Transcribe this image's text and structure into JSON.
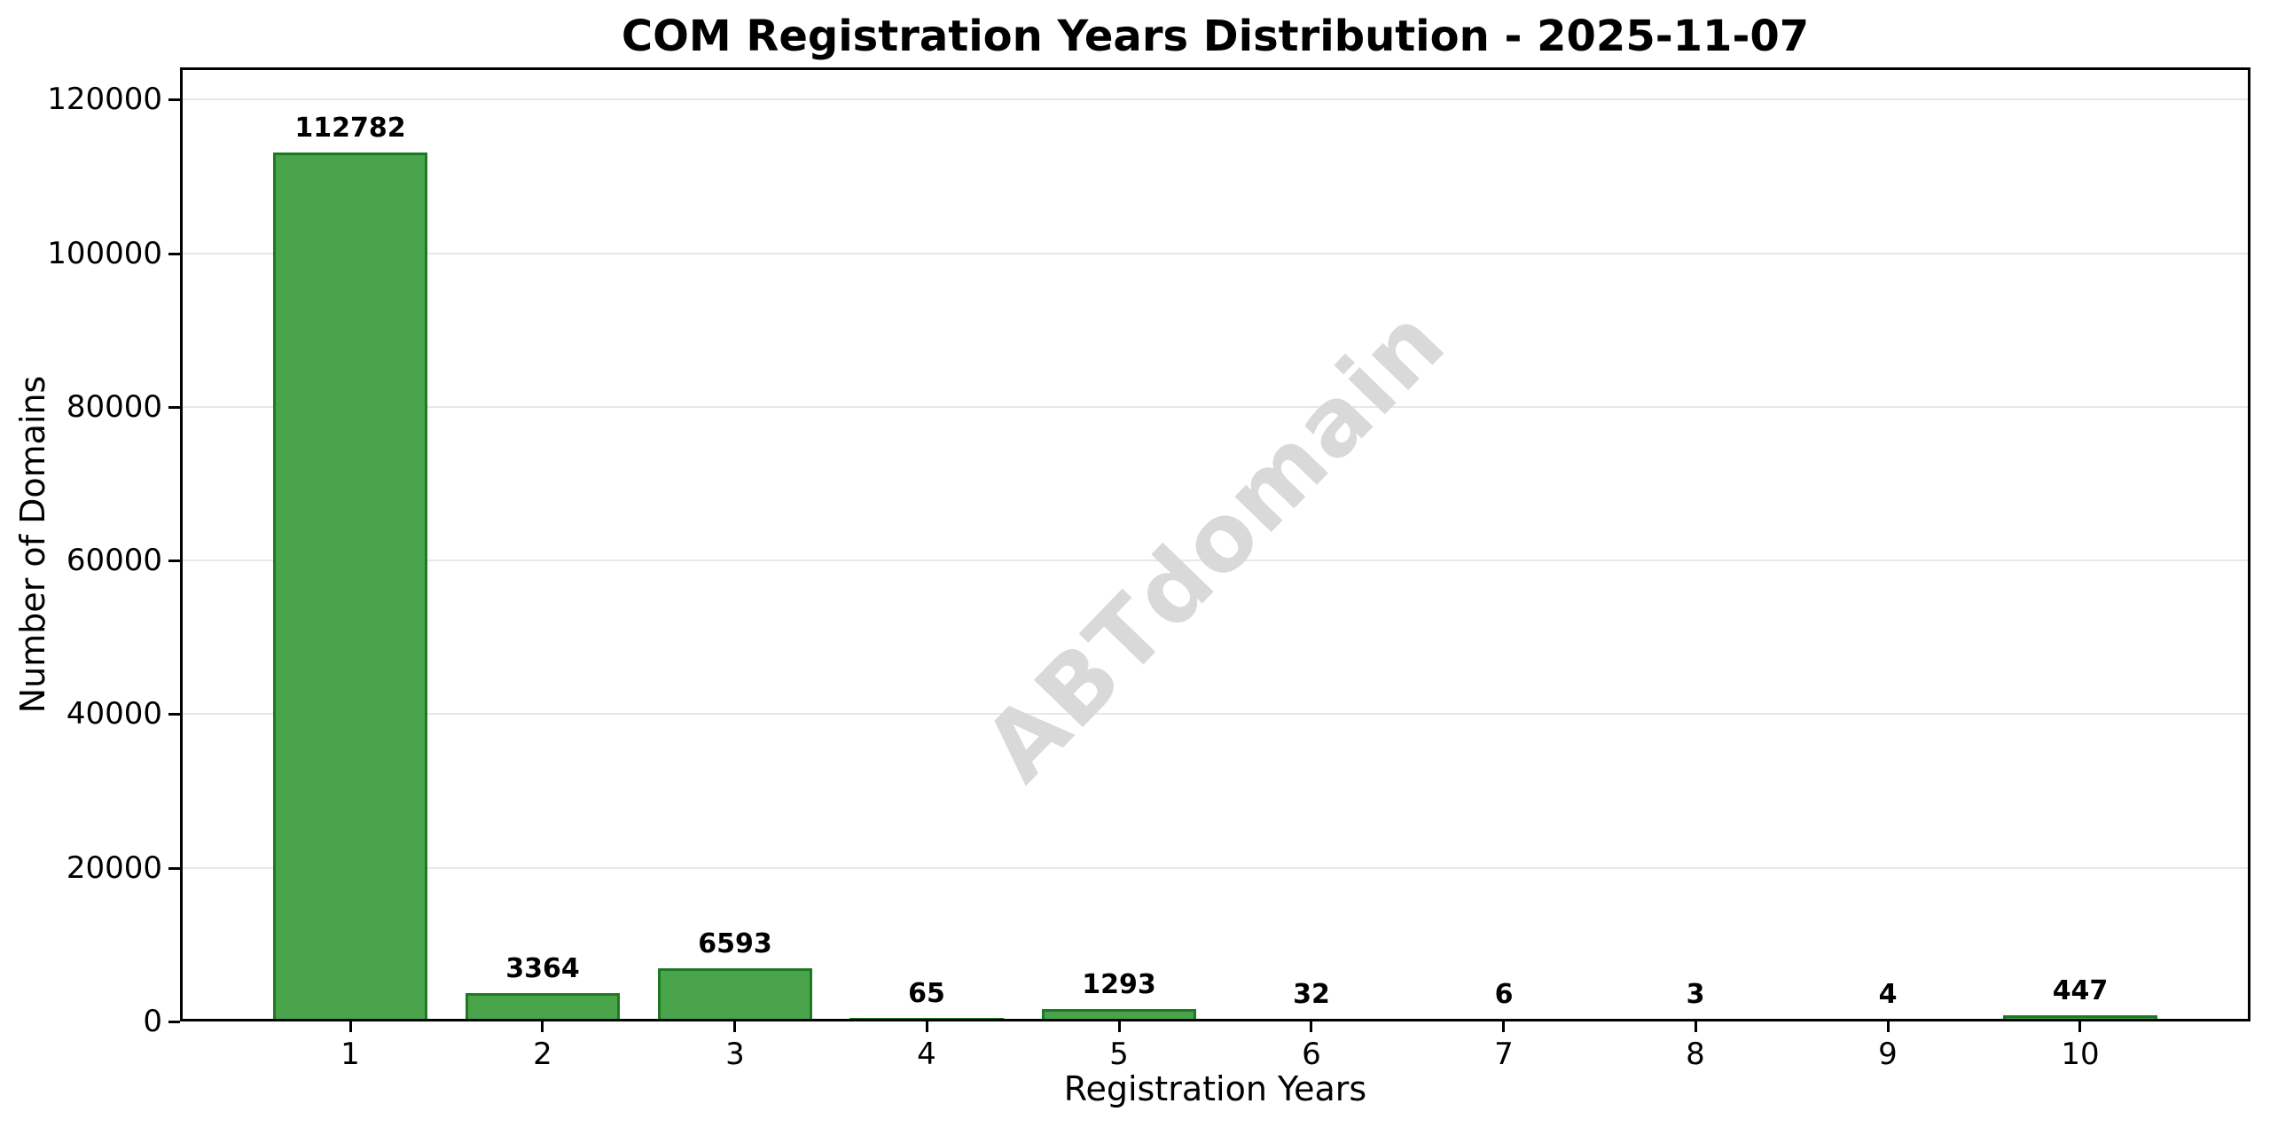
{
  "page": {
    "background": "#ffffff"
  },
  "chart_data": {
    "type": "bar",
    "title": "COM Registration Years Distribution - 2025-11-07",
    "xlabel": "Registration Years",
    "ylabel": "Number of Domains",
    "categories": [
      "1",
      "2",
      "3",
      "4",
      "5",
      "6",
      "7",
      "8",
      "9",
      "10"
    ],
    "values": [
      112782,
      3364,
      6593,
      65,
      1293,
      32,
      6,
      3,
      4,
      447
    ],
    "bar_labels": [
      "112782",
      "3364",
      "6593",
      "65",
      "1293",
      "32",
      "6",
      "3",
      "4",
      "447"
    ],
    "yticks": [
      0,
      20000,
      40000,
      60000,
      80000,
      100000,
      120000
    ],
    "ytick_labels": [
      "0",
      "20000",
      "40000",
      "60000",
      "80000",
      "100000",
      "120000"
    ],
    "ylim": [
      0,
      124200
    ],
    "grid": "horizontal",
    "legend": "none",
    "colors": {
      "bar_fill": "#4aa44c",
      "bar_edge": "#1e7a22",
      "gridline": "#e7e7e7",
      "axis": "#000000",
      "text": "#000000",
      "watermark": "#d9d9d9"
    },
    "watermark": {
      "text": "ABTdomain",
      "rotation_deg": -46
    }
  }
}
